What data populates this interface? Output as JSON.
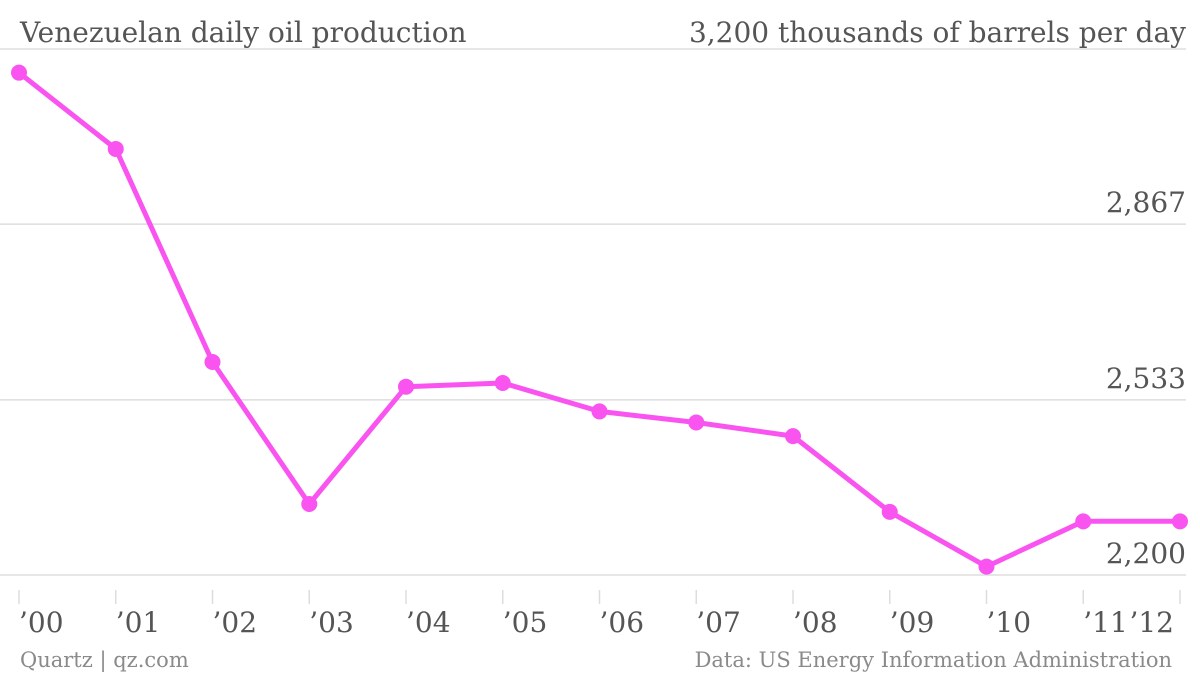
{
  "chart_data": {
    "type": "line",
    "title": "Venezuelan daily oil production",
    "unit_label": "3,200 thousands of barrels per day",
    "y_ticks": [
      "2,200",
      "2,533",
      "2,867"
    ],
    "y_tick_values": [
      2200,
      2533,
      2867
    ],
    "ylim": [
      2200,
      3200
    ],
    "x_tick_labels": [
      "’00",
      "’01",
      "’02",
      "’03",
      "’04",
      "’05",
      "’06",
      "’07",
      "’08",
      "’09",
      "’10",
      "’11",
      "’12"
    ],
    "x": [
      2000,
      2001,
      2002,
      2003,
      2004,
      2005,
      2006,
      2007,
      2008,
      2009,
      2010,
      2011,
      2012
    ],
    "series": [
      {
        "values": [
          3155,
          3010,
          2605,
          2335,
          2558,
          2565,
          2511,
          2490,
          2464,
          2320,
          2216,
          2302,
          2302
        ]
      }
    ],
    "xlim": [
      2000,
      2012
    ],
    "grid": true,
    "colors": {
      "line": "#f954f0",
      "grid": "#dddddd",
      "text": "#555555",
      "footer": "#8a8a8a"
    }
  },
  "footer": {
    "source_left": "Quartz | qz.com",
    "source_right": "Data: US Energy Information Administration"
  }
}
